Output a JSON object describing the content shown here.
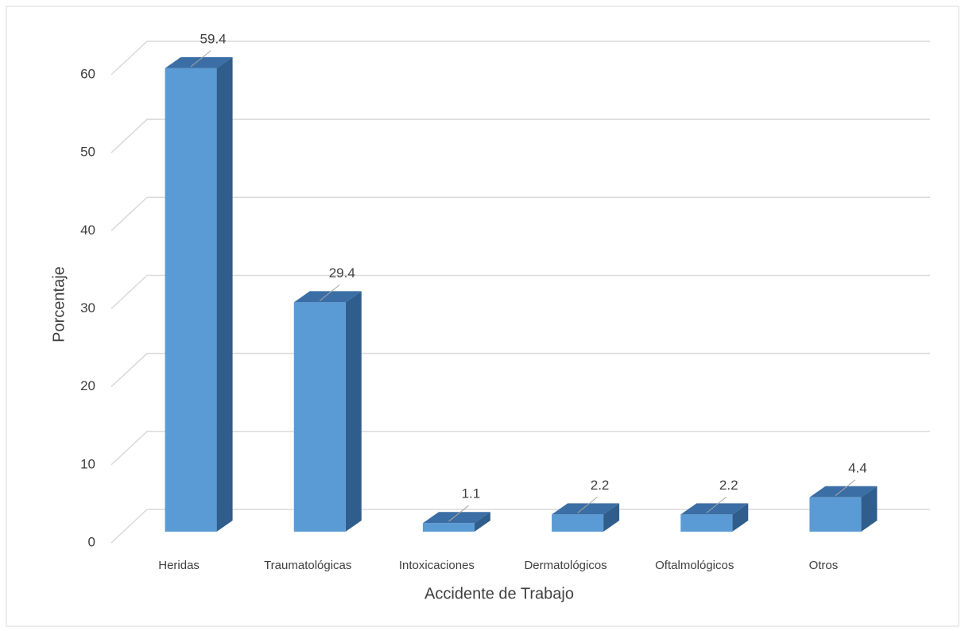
{
  "chart_data": {
    "type": "bar3d",
    "x_label": "Accidente de Trabajo",
    "y_label": "Porcentaje",
    "categories": [
      "Heridas",
      "Traumatológicas",
      "Intoxicaciones",
      "Dermatológicos",
      "Oftalmológicos",
      "Otros"
    ],
    "values": [
      59.4,
      29.4,
      1.1,
      2.2,
      2.2,
      4.4
    ],
    "color": "#5b9bd5",
    "ylim": [
      0,
      60
    ],
    "yticks": [
      0,
      10,
      20,
      30,
      40,
      50,
      60
    ],
    "grid": true
  }
}
